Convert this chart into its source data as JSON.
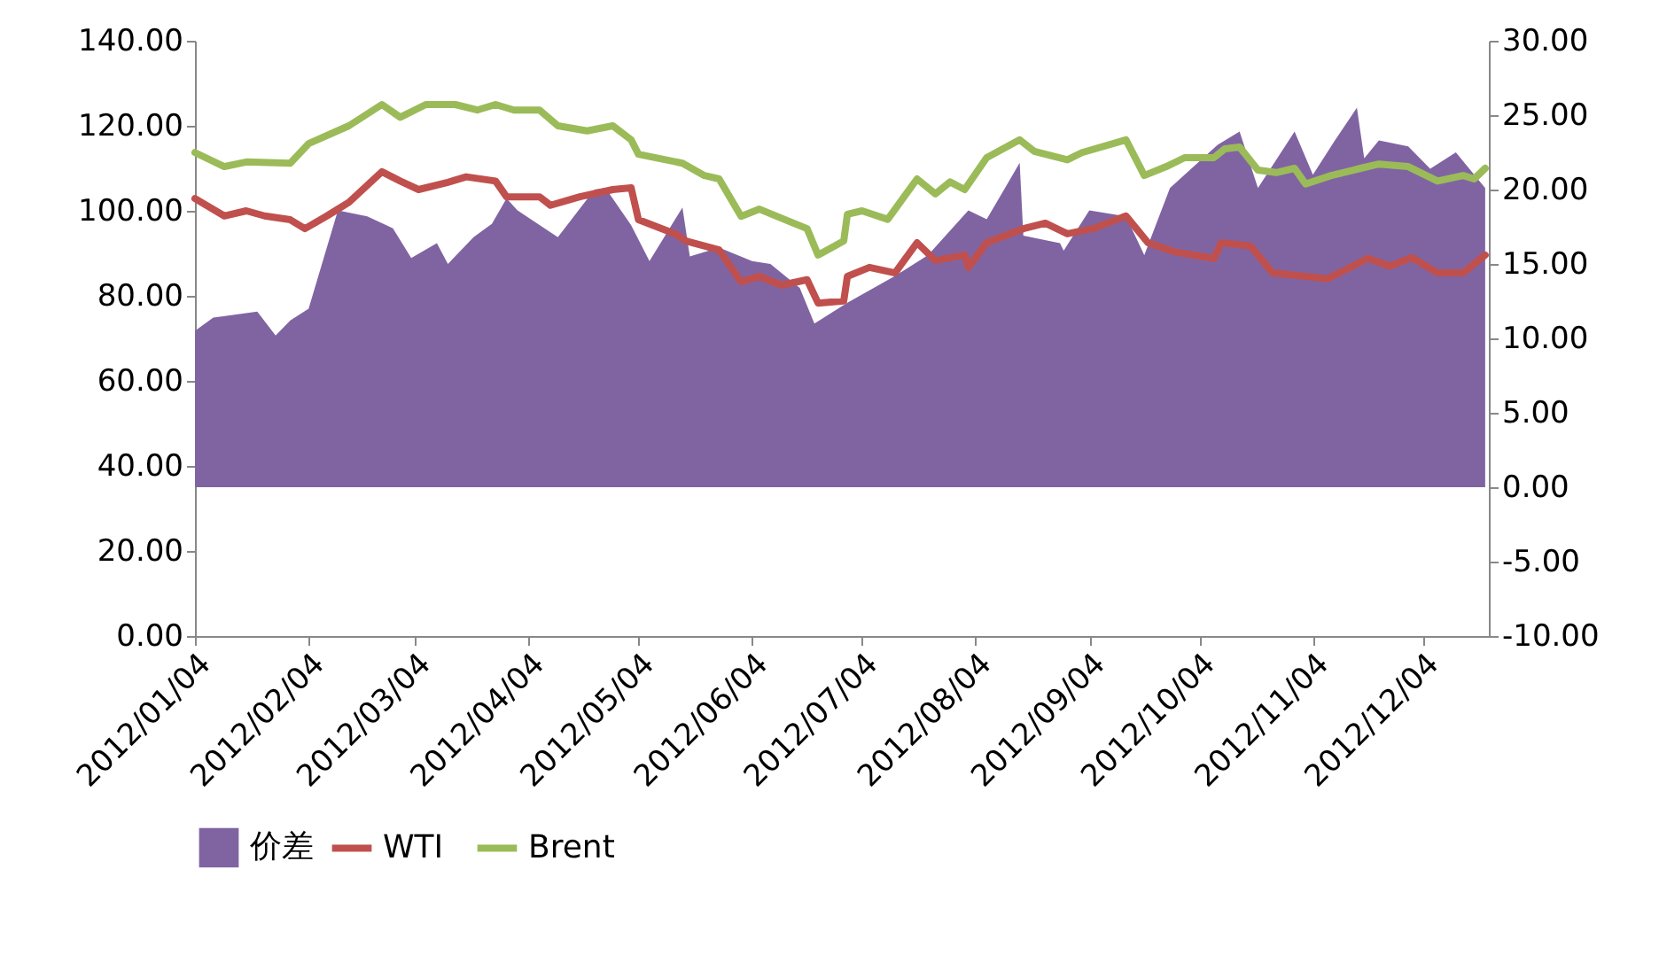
{
  "chart_data": {
    "type": "line",
    "xlim": [
      "2012-01-04",
      "2012-12-22"
    ],
    "xticks": [
      {
        "value": "2012-01-04",
        "label": "2012/01/04"
      },
      {
        "value": "2012-02-04",
        "label": "2012/02/04"
      },
      {
        "value": "2012-03-04",
        "label": "2012/03/04"
      },
      {
        "value": "2012-04-04",
        "label": "2012/04/04"
      },
      {
        "value": "2012-05-04",
        "label": "2012/05/04"
      },
      {
        "value": "2012-06-04",
        "label": "2012/06/04"
      },
      {
        "value": "2012-07-04",
        "label": "2012/07/04"
      },
      {
        "value": "2012-08-04",
        "label": "2012/08/04"
      },
      {
        "value": "2012-09-04",
        "label": "2012/09/04"
      },
      {
        "value": "2012-10-04",
        "label": "2012/10/04"
      },
      {
        "value": "2012-11-04",
        "label": "2012/11/04"
      },
      {
        "value": "2012-12-04",
        "label": "2012/12/04"
      }
    ],
    "ylim": [
      0,
      140
    ],
    "yticks": [
      {
        "value": 0,
        "label": "0.00"
      },
      {
        "value": 20,
        "label": "20.00"
      },
      {
        "value": 40,
        "label": "40.00"
      },
      {
        "value": 60,
        "label": "60.00"
      },
      {
        "value": 80,
        "label": "80.00"
      },
      {
        "value": 100,
        "label": "100.00"
      },
      {
        "value": 120,
        "label": "120.00"
      },
      {
        "value": 140,
        "label": "140.00"
      }
    ],
    "y2lim": [
      -10,
      30
    ],
    "y2ticks": [
      {
        "value": -10,
        "label": "-10.00"
      },
      {
        "value": -5,
        "label": "-5.00"
      },
      {
        "value": 0,
        "label": "0.00"
      },
      {
        "value": 5,
        "label": "5.00"
      },
      {
        "value": 10,
        "label": "10.00"
      },
      {
        "value": 15,
        "label": "15.00"
      },
      {
        "value": 20,
        "label": "20.00"
      },
      {
        "value": 25,
        "label": "25.00"
      },
      {
        "value": 30,
        "label": "30.00"
      }
    ],
    "grid": false,
    "legend": "bottom",
    "line_style": "solid",
    "marker": "none",
    "series": [
      {
        "name": "价差",
        "type": "area",
        "axis": "y2",
        "color": "#8064a2",
        "x": [
          "2012-01-04",
          "2012-01-09",
          "2012-01-21",
          "2012-01-26",
          "2012-01-30",
          "2012-02-04",
          "2012-02-12",
          "2012-02-20",
          "2012-02-27",
          "2012-03-03",
          "2012-03-10",
          "2012-03-13",
          "2012-03-20",
          "2012-03-25",
          "2012-03-29",
          "2012-04-01",
          "2012-04-12",
          "2012-04-22",
          "2012-04-25",
          "2012-05-02",
          "2012-05-07",
          "2012-05-16",
          "2012-05-18",
          "2012-05-26",
          "2012-06-04",
          "2012-06-09",
          "2012-06-17",
          "2012-06-21",
          "2012-06-30",
          "2012-07-13",
          "2012-07-22",
          "2012-08-02",
          "2012-08-07",
          "2012-08-12",
          "2012-08-16",
          "2012-08-17",
          "2012-08-27",
          "2012-08-28",
          "2012-09-04",
          "2012-09-14",
          "2012-09-19",
          "2012-09-26",
          "2012-10-09",
          "2012-10-15",
          "2012-10-20",
          "2012-10-30",
          "2012-11-04",
          "2012-11-10",
          "2012-11-16",
          "2012-11-18",
          "2012-11-22",
          "2012-11-30",
          "2012-12-06",
          "2012-12-13",
          "2012-12-21"
        ],
        "values": [
          10.5,
          11.4,
          11.8,
          10.2,
          11.2,
          12.0,
          18.6,
          18.2,
          17.4,
          15.4,
          16.4,
          15.0,
          16.8,
          17.7,
          19.4,
          18.6,
          16.8,
          20.0,
          20.1,
          17.6,
          15.2,
          18.8,
          15.5,
          16.1,
          15.2,
          15.0,
          13.4,
          11.0,
          12.4,
          14.2,
          15.6,
          18.6,
          18.0,
          20.1,
          21.8,
          16.9,
          16.4,
          15.9,
          18.6,
          18.2,
          15.6,
          20.1,
          23.0,
          23.9,
          20.1,
          23.9,
          21.0,
          23.3,
          25.5,
          22.1,
          23.3,
          22.9,
          21.4,
          22.5,
          20.1
        ]
      },
      {
        "name": "WTI",
        "color": "#c0504d",
        "x": [
          "2012-01-04",
          "2012-01-12",
          "2012-01-18",
          "2012-01-23",
          "2012-01-30",
          "2012-02-03",
          "2012-02-09",
          "2012-02-15",
          "2012-02-24",
          "2012-02-29",
          "2012-03-05",
          "2012-03-13",
          "2012-03-18",
          "2012-03-26",
          "2012-03-29",
          "2012-04-07",
          "2012-04-10",
          "2012-04-18",
          "2012-04-27",
          "2012-05-02",
          "2012-05-04",
          "2012-05-14",
          "2012-05-17",
          "2012-05-26",
          "2012-06-01",
          "2012-06-06",
          "2012-06-12",
          "2012-06-19",
          "2012-06-22",
          "2012-06-29",
          "2012-06-30",
          "2012-07-06",
          "2012-07-13",
          "2012-07-19",
          "2012-07-24",
          "2012-08-01",
          "2012-08-02",
          "2012-08-07",
          "2012-08-17",
          "2012-08-23",
          "2012-08-29",
          "2012-09-05",
          "2012-09-14",
          "2012-09-20",
          "2012-09-27",
          "2012-10-08",
          "2012-10-10",
          "2012-10-18",
          "2012-10-24",
          "2012-11-02",
          "2012-11-08",
          "2012-11-19",
          "2012-11-25",
          "2012-12-01",
          "2012-12-08",
          "2012-12-15",
          "2012-12-21"
        ],
        "values": [
          102.9,
          98.8,
          100.0,
          98.8,
          97.9,
          95.8,
          98.8,
          102.0,
          109.2,
          107.0,
          105.0,
          106.7,
          108.0,
          107.0,
          103.3,
          103.3,
          101.3,
          103.3,
          105.0,
          105.4,
          97.9,
          94.6,
          92.9,
          90.8,
          83.3,
          84.6,
          82.5,
          83.8,
          78.3,
          78.8,
          84.6,
          86.7,
          85.4,
          92.5,
          88.3,
          89.6,
          86.7,
          92.5,
          95.8,
          97.1,
          94.6,
          95.8,
          98.8,
          92.5,
          90.4,
          88.8,
          92.5,
          91.7,
          85.4,
          84.6,
          84.0,
          88.8,
          87.0,
          89.0,
          85.4,
          85.4,
          89.6
        ]
      },
      {
        "name": "Brent",
        "color": "#9bbb59",
        "x": [
          "2012-01-04",
          "2012-01-12",
          "2012-01-18",
          "2012-01-30",
          "2012-02-04",
          "2012-02-15",
          "2012-02-24",
          "2012-02-29",
          "2012-03-07",
          "2012-03-15",
          "2012-03-21",
          "2012-03-26",
          "2012-03-31",
          "2012-04-07",
          "2012-04-12",
          "2012-04-20",
          "2012-04-27",
          "2012-05-02",
          "2012-05-04",
          "2012-05-16",
          "2012-05-22",
          "2012-05-26",
          "2012-06-01",
          "2012-06-06",
          "2012-06-19",
          "2012-06-22",
          "2012-06-29",
          "2012-06-30",
          "2012-07-04",
          "2012-07-11",
          "2012-07-19",
          "2012-07-24",
          "2012-07-28",
          "2012-08-01",
          "2012-08-07",
          "2012-08-16",
          "2012-08-20",
          "2012-08-29",
          "2012-09-02",
          "2012-09-14",
          "2012-09-19",
          "2012-09-25",
          "2012-09-30",
          "2012-10-08",
          "2012-10-11",
          "2012-10-15",
          "2012-10-20",
          "2012-10-25",
          "2012-10-30",
          "2012-11-02",
          "2012-11-09",
          "2012-11-17",
          "2012-11-22",
          "2012-11-30",
          "2012-12-08",
          "2012-12-15",
          "2012-12-18",
          "2012-12-21"
        ],
        "values": [
          113.7,
          110.4,
          111.5,
          111.2,
          115.8,
          120.0,
          125.0,
          122.0,
          125.0,
          125.0,
          123.7,
          125.0,
          123.7,
          123.7,
          120.0,
          118.8,
          120.0,
          116.7,
          113.3,
          111.2,
          108.3,
          107.5,
          98.7,
          100.4,
          95.8,
          89.6,
          92.9,
          99.2,
          100.0,
          98.0,
          107.5,
          104.0,
          106.8,
          105.0,
          112.5,
          116.7,
          114.0,
          112.0,
          113.7,
          116.7,
          108.3,
          110.4,
          112.5,
          112.5,
          114.6,
          115.0,
          109.6,
          109.0,
          110.0,
          106.3,
          108.3,
          110.0,
          111.0,
          110.4,
          107.0,
          108.3,
          107.5,
          110.0
        ]
      }
    ]
  }
}
